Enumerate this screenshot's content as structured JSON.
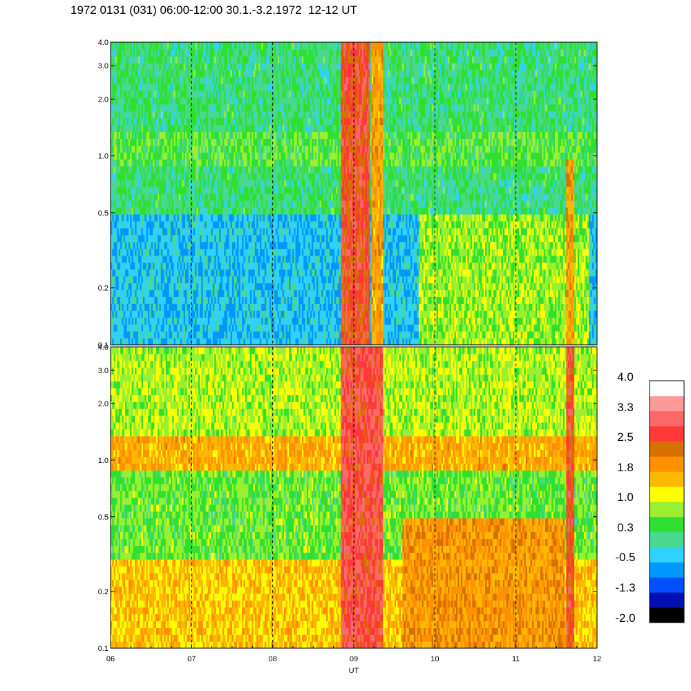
{
  "title": "1972 0131 (031) 06:00-12:00 30.1.-3.2.1972  12-12 UT",
  "chart_data": {
    "type": "heatmap",
    "title": "1972 0131 (031) 06:00-12:00 30.1.-3.2.1972  12-12 UT",
    "xlabel": "UT",
    "x_ticks": [
      "06",
      "07",
      "08",
      "09",
      "10",
      "11",
      "12"
    ],
    "x_range": [
      6,
      12
    ],
    "y_scale": "log",
    "y_range": [
      0.1,
      4.0
    ],
    "y_ticks": [
      "0.1",
      "0.2",
      "0.5",
      "1.0",
      "2.0",
      "3.0",
      "4.0"
    ],
    "y_tick_values": [
      0.1,
      0.2,
      0.5,
      1.0,
      2.0,
      3.0,
      4.0
    ],
    "vertical_dashed_lines_at": [
      7,
      8,
      9,
      10,
      11
    ],
    "panels": [
      {
        "name": "upper",
        "bands": [
          {
            "y": [
              0.1,
              0.5
            ],
            "level": -0.4
          },
          {
            "y": [
              0.5,
              0.85
            ],
            "level": 0.2
          },
          {
            "y": [
              0.85,
              1.4
            ],
            "level": 0.5
          },
          {
            "y": [
              1.4,
              4.0
            ],
            "level": 0.2
          }
        ],
        "events": [
          {
            "x": [
              8.84,
              9.2
            ],
            "level": 2.6
          },
          {
            "x": [
              9.22,
              9.35
            ],
            "level": 1.8
          },
          {
            "x": [
              9.8,
              11.9
            ],
            "y": [
              0.1,
              0.5
            ],
            "level": 0.8
          },
          {
            "x": [
              11.62,
              11.72
            ],
            "y": [
              0.1,
              1.0
            ],
            "level": 1.9
          }
        ]
      },
      {
        "name": "lower",
        "bands": [
          {
            "y": [
              0.1,
              0.3
            ],
            "level": 1.5
          },
          {
            "y": [
              0.3,
              0.9
            ],
            "level": 0.6
          },
          {
            "y": [
              0.9,
              1.35
            ],
            "level": 1.7
          },
          {
            "y": [
              1.35,
              4.0
            ],
            "level": 0.9
          }
        ],
        "events": [
          {
            "x": [
              8.84,
              9.35
            ],
            "level": 2.8
          },
          {
            "x": [
              9.6,
              11.6
            ],
            "y": [
              0.1,
              0.5
            ],
            "level": 1.9
          },
          {
            "x": [
              11.62,
              11.72
            ],
            "level": 2.6
          }
        ]
      }
    ],
    "colorbar": {
      "labels": [
        "4.0",
        "3.3",
        "2.5",
        "1.8",
        "1.0",
        "0.3",
        "-0.5",
        "-1.3",
        "-2.0"
      ],
      "colors": [
        "#000000",
        "#0010b0",
        "#0050ff",
        "#0098ff",
        "#30d0ff",
        "#48d890",
        "#30e030",
        "#98f030",
        "#ffff00",
        "#ffb800",
        "#ff9000",
        "#d87000",
        "#ff3838",
        "#ff6868",
        "#ff9898",
        "#ffffff"
      ],
      "range": [
        -2.0,
        4.0
      ]
    }
  }
}
